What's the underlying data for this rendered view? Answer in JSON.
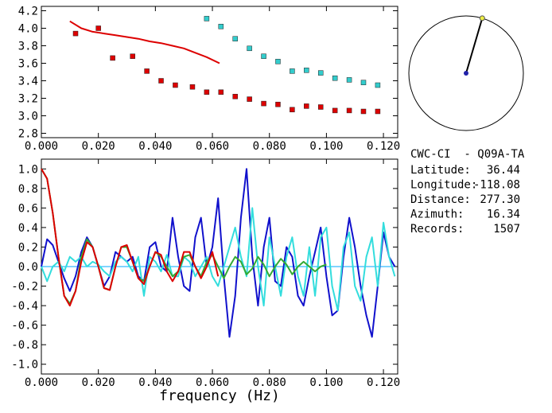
{
  "chart_data": [
    {
      "type": "scatter",
      "title": "",
      "xlabel": "",
      "ylabel": "",
      "xlim": [
        0.0,
        0.125
      ],
      "ylim": [
        2.75,
        4.25
      ],
      "xticks": [
        "0.000",
        "0.020",
        "0.040",
        "0.060",
        "0.080",
        "0.100",
        "0.120"
      ],
      "yticks": [
        "2.8",
        "3.0",
        "3.2",
        "3.4",
        "3.6",
        "3.8",
        "4.0",
        "4.2"
      ],
      "series": [
        {
          "kind": "line",
          "color": "#dd0000",
          "x": [
            0.01,
            0.014,
            0.018,
            0.022,
            0.026,
            0.03,
            0.034,
            0.038,
            0.042,
            0.046,
            0.05,
            0.054,
            0.058,
            0.0625
          ],
          "y": [
            4.08,
            4.0,
            3.96,
            3.94,
            3.92,
            3.9,
            3.88,
            3.85,
            3.83,
            3.8,
            3.77,
            3.72,
            3.67,
            3.6
          ]
        },
        {
          "kind": "markers",
          "color": "#dd0000",
          "x": [
            0.012,
            0.02,
            0.025,
            0.032,
            0.037,
            0.042,
            0.047,
            0.053,
            0.058,
            0.063,
            0.068,
            0.073,
            0.078,
            0.083,
            0.088,
            0.093,
            0.098,
            0.103,
            0.108,
            0.113,
            0.118
          ],
          "y": [
            3.94,
            4.0,
            3.66,
            3.68,
            3.51,
            3.4,
            3.35,
            3.33,
            3.27,
            3.27,
            3.22,
            3.19,
            3.14,
            3.13,
            3.07,
            3.11,
            3.1,
            3.06,
            3.06,
            3.05,
            3.05
          ]
        },
        {
          "kind": "markers",
          "color": "#33cccc",
          "x": [
            0.058,
            0.063,
            0.068,
            0.073,
            0.078,
            0.083,
            0.088,
            0.093,
            0.098,
            0.103,
            0.108,
            0.113,
            0.118
          ],
          "y": [
            4.11,
            4.02,
            3.88,
            3.77,
            3.68,
            3.62,
            3.51,
            3.52,
            3.49,
            3.43,
            3.41,
            3.38,
            3.35
          ]
        }
      ]
    },
    {
      "type": "line",
      "title": "",
      "xlabel": "frequency (Hz)",
      "ylabel": "",
      "xlim": [
        0.0,
        0.125
      ],
      "ylim": [
        -1.1,
        1.1
      ],
      "xticks": [
        "0.000",
        "0.020",
        "0.040",
        "0.060",
        "0.080",
        "0.100",
        "0.120"
      ],
      "yticks": [
        "-1.0",
        "-0.8",
        "-0.6",
        "-0.4",
        "-0.2",
        "0.0",
        "0.2",
        "0.4",
        "0.6",
        "0.8",
        "1.0"
      ],
      "zero_line": true,
      "series": [
        {
          "color": "#00aaff",
          "x": [
            0.0,
            0.124
          ],
          "y": [
            0.0,
            0.0
          ]
        },
        {
          "color": "#1111cc",
          "x": [
            0.0,
            0.002,
            0.004,
            0.006,
            0.008,
            0.01,
            0.012,
            0.014,
            0.016,
            0.018,
            0.02,
            0.022,
            0.024,
            0.026,
            0.028,
            0.03,
            0.032,
            0.034,
            0.036,
            0.038,
            0.04,
            0.042,
            0.044,
            0.046,
            0.048,
            0.05,
            0.052,
            0.054,
            0.056,
            0.058,
            0.06,
            0.062,
            0.064,
            0.066,
            0.068,
            0.07,
            0.072,
            0.074,
            0.076,
            0.078,
            0.08,
            0.082,
            0.084,
            0.086,
            0.088,
            0.09,
            0.092,
            0.094,
            0.096,
            0.098,
            0.1,
            0.102,
            0.104,
            0.106,
            0.108,
            0.11,
            0.112,
            0.114,
            0.116,
            0.118,
            0.12,
            0.122,
            0.124
          ],
          "y": [
            0.0,
            0.28,
            0.22,
            0.05,
            -0.12,
            -0.25,
            -0.1,
            0.15,
            0.3,
            0.2,
            0.0,
            -0.2,
            -0.1,
            0.15,
            0.1,
            0.05,
            0.1,
            -0.1,
            -0.15,
            0.2,
            0.25,
            0.0,
            -0.05,
            0.5,
            0.1,
            -0.2,
            -0.25,
            0.3,
            0.5,
            0.0,
            0.2,
            0.7,
            -0.1,
            -0.72,
            -0.3,
            0.5,
            1.0,
            0.1,
            -0.4,
            0.2,
            0.5,
            -0.15,
            -0.2,
            0.2,
            0.1,
            -0.3,
            -0.4,
            -0.1,
            0.15,
            0.4,
            -0.1,
            -0.5,
            -0.45,
            0.1,
            0.5,
            0.2,
            -0.2,
            -0.5,
            -0.72,
            -0.2,
            0.35,
            0.1,
            0.0
          ]
        },
        {
          "color": "#33dddd",
          "x": [
            0.0,
            0.002,
            0.004,
            0.006,
            0.008,
            0.01,
            0.012,
            0.014,
            0.016,
            0.018,
            0.02,
            0.022,
            0.024,
            0.026,
            0.028,
            0.03,
            0.032,
            0.034,
            0.036,
            0.038,
            0.04,
            0.042,
            0.044,
            0.046,
            0.048,
            0.05,
            0.052,
            0.054,
            0.056,
            0.058,
            0.06,
            0.062,
            0.064,
            0.066,
            0.068,
            0.07,
            0.072,
            0.074,
            0.076,
            0.078,
            0.08,
            0.082,
            0.084,
            0.086,
            0.088,
            0.09,
            0.092,
            0.094,
            0.096,
            0.098,
            0.1,
            0.102,
            0.104,
            0.106,
            0.108,
            0.11,
            0.112,
            0.114,
            0.116,
            0.118,
            0.12,
            0.122,
            0.124
          ],
          "y": [
            0.0,
            -0.15,
            0.0,
            0.05,
            -0.05,
            0.1,
            0.05,
            0.1,
            0.0,
            0.05,
            0.02,
            -0.05,
            -0.1,
            0.05,
            0.1,
            0.05,
            -0.05,
            0.1,
            -0.3,
            0.1,
            0.05,
            -0.05,
            0.12,
            -0.1,
            -0.1,
            0.1,
            0.05,
            -0.1,
            0.0,
            0.1,
            -0.1,
            -0.2,
            0.0,
            0.2,
            0.4,
            0.1,
            -0.1,
            0.6,
            0.0,
            -0.4,
            0.3,
            0.0,
            -0.3,
            0.1,
            0.3,
            -0.1,
            -0.3,
            0.2,
            -0.3,
            0.3,
            0.4,
            -0.2,
            -0.45,
            0.2,
            0.35,
            -0.2,
            -0.35,
            0.1,
            0.3,
            -0.2,
            0.45,
            0.1,
            -0.1
          ]
        },
        {
          "color": "#33aa33",
          "x": [
            0.0,
            0.002,
            0.004,
            0.006,
            0.008,
            0.01,
            0.012,
            0.014,
            0.016,
            0.018,
            0.02,
            0.022,
            0.024,
            0.026,
            0.028,
            0.03,
            0.032,
            0.034,
            0.036,
            0.038,
            0.04,
            0.042,
            0.044,
            0.046,
            0.048,
            0.05,
            0.052,
            0.054,
            0.056,
            0.058,
            0.06,
            0.062,
            0.064,
            0.066,
            0.068,
            0.07,
            0.072,
            0.074,
            0.076,
            0.078,
            0.08,
            0.082,
            0.084,
            0.086,
            0.088,
            0.09,
            0.092,
            0.094,
            0.096,
            0.098,
            0.1
          ],
          "y": [
            1.0,
            0.9,
            0.55,
            0.1,
            -0.3,
            -0.38,
            -0.25,
            0.1,
            0.28,
            0.2,
            0.0,
            -0.22,
            -0.24,
            0.0,
            0.2,
            0.2,
            0.05,
            -0.12,
            -0.15,
            0.0,
            0.15,
            0.1,
            0.0,
            -0.1,
            -0.05,
            0.1,
            0.12,
            0.0,
            -0.1,
            0.05,
            0.12,
            0.0,
            -0.12,
            0.0,
            0.1,
            0.05,
            -0.08,
            -0.02,
            0.1,
            0.02,
            -0.1,
            0.0,
            0.08,
            0.02,
            -0.08,
            0.0,
            0.05,
            0.0,
            -0.05,
            0.0,
            0.02
          ]
        },
        {
          "color": "#dd0000",
          "x": [
            0.0,
            0.002,
            0.004,
            0.006,
            0.008,
            0.01,
            0.012,
            0.014,
            0.016,
            0.018,
            0.02,
            0.022,
            0.024,
            0.026,
            0.028,
            0.03,
            0.032,
            0.034,
            0.036,
            0.038,
            0.04,
            0.042,
            0.044,
            0.046,
            0.048,
            0.05,
            0.052,
            0.054,
            0.056,
            0.058,
            0.06,
            0.062
          ],
          "y": [
            1.0,
            0.9,
            0.55,
            0.1,
            -0.3,
            -0.4,
            -0.25,
            0.05,
            0.25,
            0.2,
            0.0,
            -0.22,
            -0.24,
            0.0,
            0.2,
            0.22,
            0.05,
            -0.12,
            -0.18,
            0.0,
            0.15,
            0.12,
            -0.05,
            -0.15,
            -0.05,
            0.15,
            0.15,
            0.0,
            -0.12,
            0.0,
            0.15,
            -0.1
          ]
        }
      ]
    },
    {
      "type": "other",
      "description": "azimuth circle",
      "azimuth_deg": 16.34,
      "marker_colors": [
        "#2222aa",
        "#eeee44"
      ]
    }
  ],
  "info": {
    "title": "CWC-CI  - Q09A-TA",
    "rows": [
      {
        "label": "Latitude:",
        "value": "36.44"
      },
      {
        "label": "Longitude:",
        "value": "-118.08"
      },
      {
        "label": "Distance:",
        "value": "277.30"
      },
      {
        "label": "Azimuth:",
        "value": "16.34"
      },
      {
        "label": "Records:",
        "value": "1507"
      }
    ]
  }
}
